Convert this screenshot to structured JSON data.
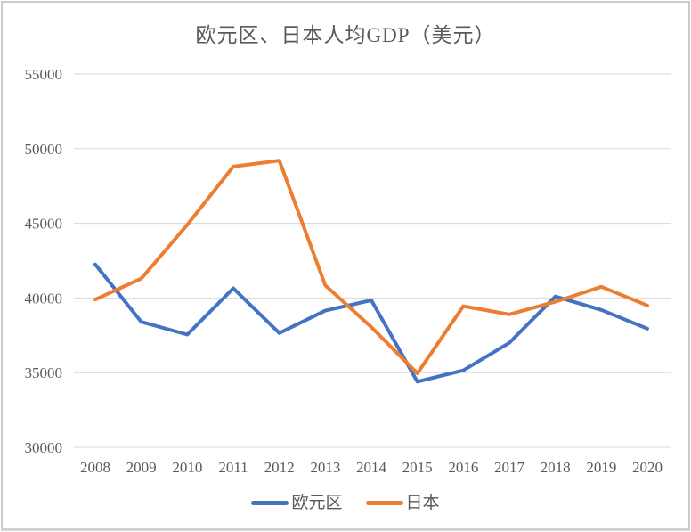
{
  "page_title": "欧元区、日本人均GDP（美元）",
  "chart_data": {
    "type": "line",
    "title": "欧元区、日本人均GDP（美元）",
    "categories": [
      "2008",
      "2009",
      "2010",
      "2011",
      "2012",
      "2013",
      "2014",
      "2015",
      "2016",
      "2017",
      "2018",
      "2019",
      "2020"
    ],
    "series": [
      {
        "id": "eurozone",
        "name": "欧元区",
        "color": "#4472C4",
        "values": [
          42250,
          38400,
          37550,
          40650,
          37650,
          39150,
          39850,
          34400,
          35150,
          37000,
          40100,
          39200,
          37950
        ]
      },
      {
        "id": "japan",
        "name": "日本",
        "color": "#ED7D31",
        "values": [
          39900,
          41300,
          44900,
          48800,
          49200,
          40850,
          38050,
          34950,
          39450,
          38900,
          39750,
          40750,
          39500
        ]
      }
    ],
    "ylim": [
      30000,
      55000
    ],
    "ytick_step": 5000,
    "ytick_labels": [
      "30000",
      "35000",
      "40000",
      "45000",
      "50000",
      "55000"
    ],
    "xlabel": "",
    "ylabel": "",
    "grid": "horizontal-only",
    "gridline_color": "#D9D9D9",
    "axis_text_color": "#595959",
    "legend_position": "bottom-center",
    "line_width": 4
  }
}
